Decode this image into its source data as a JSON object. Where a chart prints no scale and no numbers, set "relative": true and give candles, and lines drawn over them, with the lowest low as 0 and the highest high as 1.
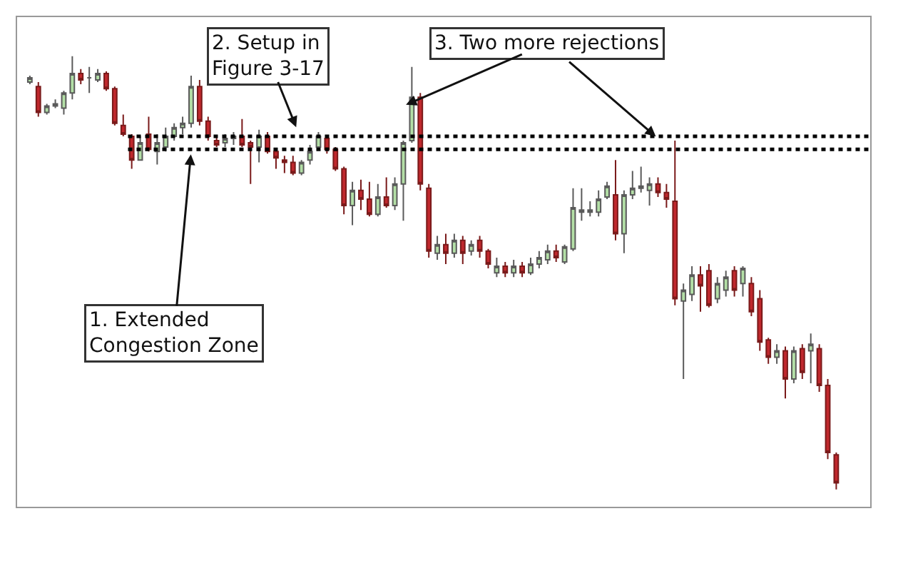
{
  "chart_data": {
    "type": "candlestick",
    "relative": true,
    "categories": [
      null,
      null,
      null,
      null,
      null,
      null,
      null,
      null,
      null,
      null,
      null,
      null,
      null,
      null,
      null,
      null,
      null,
      null,
      null,
      null,
      null,
      null,
      null,
      null,
      null,
      null,
      null,
      null,
      null,
      null,
      null,
      null,
      null,
      null,
      null,
      null,
      null,
      null,
      null,
      null,
      null,
      null,
      null,
      null,
      null,
      null,
      null,
      null,
      null,
      null,
      null,
      null,
      null,
      null,
      null,
      null,
      null,
      null,
      null,
      null,
      null,
      null,
      null,
      null,
      null,
      null,
      null,
      null,
      null,
      null,
      null,
      null,
      null,
      null,
      null,
      null,
      null,
      null,
      null,
      null,
      null,
      null,
      null,
      null,
      null,
      null,
      null,
      null,
      null,
      null,
      null,
      null,
      null,
      null,
      null,
      null
    ],
    "ohlc": [
      [
        0.94,
        0.955,
        0.935,
        0.95
      ],
      [
        0.93,
        0.94,
        0.86,
        0.87
      ],
      [
        0.87,
        0.89,
        0.865,
        0.885
      ],
      [
        0.885,
        0.9,
        0.88,
        0.89
      ],
      [
        0.88,
        0.92,
        0.865,
        0.915
      ],
      [
        0.915,
        1.0,
        0.9,
        0.96
      ],
      [
        0.96,
        0.97,
        0.935,
        0.945
      ],
      [
        0.95,
        0.975,
        0.915,
        0.95
      ],
      [
        0.945,
        0.97,
        0.94,
        0.96
      ],
      [
        0.96,
        0.965,
        0.92,
        0.925
      ],
      [
        0.925,
        0.93,
        0.84,
        0.845
      ],
      [
        0.84,
        0.865,
        0.815,
        0.82
      ],
      [
        0.815,
        0.82,
        0.74,
        0.76
      ],
      [
        0.76,
        0.815,
        0.76,
        0.8
      ],
      [
        0.82,
        0.86,
        0.78,
        0.785
      ],
      [
        0.78,
        0.82,
        0.75,
        0.8
      ],
      [
        0.79,
        0.835,
        0.78,
        0.815
      ],
      [
        0.815,
        0.845,
        0.805,
        0.835
      ],
      [
        0.835,
        0.86,
        0.82,
        0.845
      ],
      [
        0.845,
        0.955,
        0.835,
        0.93
      ],
      [
        0.93,
        0.945,
        0.84,
        0.85
      ],
      [
        0.85,
        0.86,
        0.805,
        0.815
      ],
      [
        0.805,
        0.815,
        0.79,
        0.795
      ],
      [
        0.8,
        0.82,
        0.79,
        0.81
      ],
      [
        0.81,
        0.825,
        0.795,
        0.815
      ],
      [
        0.815,
        0.855,
        0.79,
        0.795
      ],
      [
        0.8,
        0.805,
        0.705,
        0.79
      ],
      [
        0.79,
        0.83,
        0.755,
        0.815
      ],
      [
        0.815,
        0.825,
        0.775,
        0.78
      ],
      [
        0.78,
        0.785,
        0.74,
        0.765
      ],
      [
        0.76,
        0.77,
        0.73,
        0.755
      ],
      [
        0.755,
        0.77,
        0.725,
        0.73
      ],
      [
        0.73,
        0.76,
        0.725,
        0.755
      ],
      [
        0.76,
        0.795,
        0.75,
        0.78
      ],
      [
        0.79,
        0.825,
        0.79,
        0.815
      ],
      [
        0.81,
        0.815,
        0.775,
        0.785
      ],
      [
        0.785,
        0.79,
        0.735,
        0.74
      ],
      [
        0.74,
        0.745,
        0.635,
        0.655
      ],
      [
        0.655,
        0.71,
        0.61,
        0.69
      ],
      [
        0.69,
        0.715,
        0.645,
        0.67
      ],
      [
        0.67,
        0.71,
        0.63,
        0.635
      ],
      [
        0.635,
        0.705,
        0.63,
        0.675
      ],
      [
        0.675,
        0.72,
        0.65,
        0.655
      ],
      [
        0.655,
        0.72,
        0.645,
        0.705
      ],
      [
        0.705,
        0.805,
        0.62,
        0.8
      ],
      [
        0.805,
        0.975,
        0.8,
        0.905
      ],
      [
        0.905,
        0.915,
        0.69,
        0.705
      ],
      [
        0.695,
        0.705,
        0.535,
        0.55
      ],
      [
        0.545,
        0.585,
        0.53,
        0.565
      ],
      [
        0.565,
        0.59,
        0.52,
        0.545
      ],
      [
        0.545,
        0.59,
        0.535,
        0.575
      ],
      [
        0.575,
        0.585,
        0.52,
        0.545
      ],
      [
        0.55,
        0.575,
        0.54,
        0.565
      ],
      [
        0.575,
        0.585,
        0.535,
        0.55
      ],
      [
        0.55,
        0.555,
        0.51,
        0.52
      ],
      [
        0.5,
        0.535,
        0.49,
        0.515
      ],
      [
        0.515,
        0.525,
        0.49,
        0.5
      ],
      [
        0.5,
        0.53,
        0.49,
        0.515
      ],
      [
        0.515,
        0.525,
        0.49,
        0.5
      ],
      [
        0.5,
        0.535,
        0.495,
        0.52
      ],
      [
        0.52,
        0.55,
        0.51,
        0.535
      ],
      [
        0.53,
        0.565,
        0.52,
        0.55
      ],
      [
        0.55,
        0.565,
        0.525,
        0.535
      ],
      [
        0.525,
        0.565,
        0.52,
        0.56
      ],
      [
        0.555,
        0.695,
        0.55,
        0.65
      ],
      [
        0.64,
        0.695,
        0.62,
        0.645
      ],
      [
        0.64,
        0.665,
        0.63,
        0.645
      ],
      [
        0.64,
        0.69,
        0.63,
        0.67
      ],
      [
        0.675,
        0.71,
        0.67,
        0.7
      ],
      [
        0.68,
        0.76,
        0.575,
        0.59
      ],
      [
        0.59,
        0.69,
        0.545,
        0.68
      ],
      [
        0.68,
        0.735,
        0.67,
        0.695
      ],
      [
        0.695,
        0.745,
        0.685,
        0.7
      ],
      [
        0.69,
        0.72,
        0.655,
        0.705
      ],
      [
        0.705,
        0.72,
        0.675,
        0.685
      ],
      [
        0.685,
        0.705,
        0.65,
        0.67
      ],
      [
        0.665,
        0.805,
        0.425,
        0.44
      ],
      [
        0.435,
        0.475,
        0.255,
        0.46
      ],
      [
        0.45,
        0.515,
        0.435,
        0.495
      ],
      [
        0.495,
        0.515,
        0.41,
        0.47
      ],
      [
        0.505,
        0.52,
        0.42,
        0.425
      ],
      [
        0.44,
        0.49,
        0.43,
        0.475
      ],
      [
        0.46,
        0.505,
        0.445,
        0.49
      ],
      [
        0.505,
        0.515,
        0.445,
        0.46
      ],
      [
        0.475,
        0.515,
        0.445,
        0.51
      ],
      [
        0.475,
        0.49,
        0.4,
        0.41
      ],
      [
        0.44,
        0.46,
        0.32,
        0.34
      ],
      [
        0.345,
        0.35,
        0.29,
        0.305
      ],
      [
        0.305,
        0.335,
        0.29,
        0.32
      ],
      [
        0.32,
        0.33,
        0.21,
        0.255
      ],
      [
        0.255,
        0.33,
        0.245,
        0.32
      ],
      [
        0.325,
        0.335,
        0.255,
        0.27
      ],
      [
        0.32,
        0.36,
        0.245,
        0.335
      ],
      [
        0.325,
        0.335,
        0.225,
        0.24
      ],
      [
        0.24,
        0.255,
        0.07,
        0.085
      ],
      [
        0.08,
        0.085,
        0.0,
        0.015
      ]
    ],
    "ref_lines": [
      {
        "axis": "y",
        "value": 0.815,
        "line_style": "dotted",
        "color": "#000000"
      },
      {
        "axis": "y",
        "value": 0.785,
        "line_style": "dotted",
        "color": "#000000"
      }
    ],
    "annotations": [
      "1. Extended\nCongestion Zone",
      "2. Setup in\nFigure 3-17",
      "3. Two more rejections"
    ],
    "data_labels": false
  }
}
